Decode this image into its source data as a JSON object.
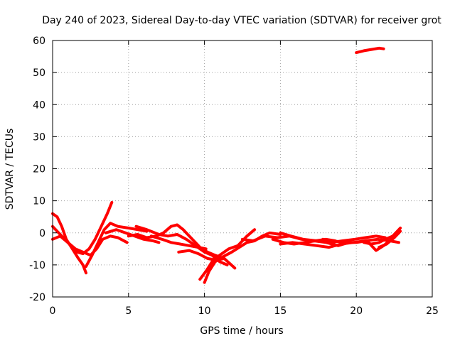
{
  "chart_data": {
    "type": "line",
    "title": "Day 240 of 2023, Sidereal Day-to-day VTEC variation (SDTVAR) for receiver grot",
    "xlabel": "GPS time / hours",
    "ylabel": "SDTVAR / TECUs",
    "xlim": [
      0,
      25
    ],
    "ylim": [
      -20,
      60
    ],
    "xticks": [
      0,
      5,
      10,
      15,
      20,
      25
    ],
    "yticks": [
      -20,
      -10,
      0,
      10,
      20,
      30,
      40,
      50,
      60
    ],
    "xtick_labels": [
      "0",
      "5",
      "10",
      "15",
      "20",
      "25"
    ],
    "ytick_labels": [
      "-20",
      "-10",
      "0",
      "10",
      "20",
      "30",
      "40",
      "50",
      "60"
    ],
    "grid": true,
    "line_color": "#ff0000",
    "series": [
      {
        "name": "s1",
        "points": [
          [
            0.0,
            6
          ],
          [
            0.3,
            5
          ],
          [
            0.6,
            2
          ],
          [
            0.9,
            -2
          ],
          [
            1.3,
            -5
          ],
          [
            1.7,
            -8
          ],
          [
            2.0,
            -10
          ],
          [
            2.2,
            -12.5
          ]
        ]
      },
      {
        "name": "s2",
        "points": [
          [
            0.0,
            2
          ],
          [
            0.4,
            0
          ],
          [
            0.8,
            -2
          ],
          [
            1.2,
            -4
          ],
          [
            1.6,
            -6
          ],
          [
            2.0,
            -6.5
          ],
          [
            2.4,
            -5
          ],
          [
            2.8,
            -2
          ],
          [
            3.2,
            2
          ],
          [
            3.6,
            6
          ],
          [
            3.9,
            9.5
          ]
        ]
      },
      {
        "name": "s3",
        "points": [
          [
            0.0,
            -2
          ],
          [
            0.5,
            -1
          ],
          [
            1.0,
            -3
          ],
          [
            1.5,
            -5
          ],
          [
            2.0,
            -6
          ],
          [
            2.5,
            -7
          ],
          [
            2.9,
            -5
          ],
          [
            3.3,
            -2
          ],
          [
            3.8,
            -1
          ],
          [
            4.3,
            -1.5
          ],
          [
            4.9,
            -3
          ]
        ]
      },
      {
        "name": "s4",
        "points": [
          [
            2.2,
            -10.5
          ],
          [
            2.6,
            -7
          ],
          [
            3.0,
            -3
          ],
          [
            3.4,
            1
          ],
          [
            3.8,
            3
          ],
          [
            4.3,
            2
          ],
          [
            5.0,
            1.5
          ],
          [
            5.6,
            1
          ],
          [
            6.2,
            0.5
          ]
        ]
      },
      {
        "name": "s5",
        "points": [
          [
            3.5,
            0
          ],
          [
            4.2,
            1
          ],
          [
            4.8,
            0
          ],
          [
            5.4,
            -1
          ],
          [
            6.0,
            -2
          ],
          [
            6.6,
            -2.5
          ],
          [
            7.0,
            -3
          ]
        ]
      },
      {
        "name": "s6",
        "points": [
          [
            5.0,
            -1
          ],
          [
            5.6,
            -0.5
          ],
          [
            6.2,
            -1.5
          ],
          [
            6.8,
            -1
          ],
          [
            7.3,
            0
          ],
          [
            7.8,
            2
          ],
          [
            8.2,
            2.5
          ],
          [
            8.6,
            1
          ],
          [
            9.0,
            -1
          ],
          [
            9.4,
            -3
          ],
          [
            9.8,
            -5
          ],
          [
            10.2,
            -6
          ],
          [
            10.7,
            -7
          ],
          [
            11.3,
            -8
          ],
          [
            12.0,
            -11
          ]
        ]
      },
      {
        "name": "s7",
        "points": [
          [
            5.5,
            2
          ],
          [
            6.2,
            1
          ],
          [
            7.0,
            -0.5
          ],
          [
            7.6,
            -1
          ],
          [
            8.2,
            -0.5
          ],
          [
            8.8,
            -2
          ],
          [
            9.4,
            -4
          ],
          [
            10.0,
            -6
          ],
          [
            10.5,
            -7
          ],
          [
            11.0,
            -9
          ],
          [
            11.5,
            -10
          ]
        ]
      },
      {
        "name": "s8",
        "points": [
          [
            6.5,
            -1
          ],
          [
            7.2,
            -2
          ],
          [
            7.8,
            -3
          ],
          [
            8.4,
            -3.5
          ],
          [
            9.0,
            -4
          ],
          [
            9.6,
            -4.5
          ],
          [
            10.1,
            -5
          ]
        ]
      },
      {
        "name": "s9",
        "points": [
          [
            8.3,
            -6
          ],
          [
            9.0,
            -5.5
          ],
          [
            9.6,
            -6.5
          ],
          [
            10.2,
            -8
          ],
          [
            10.8,
            -8.5
          ],
          [
            11.3,
            -8
          ]
        ]
      },
      {
        "name": "s10",
        "points": [
          [
            9.7,
            -14.5
          ],
          [
            10.1,
            -12
          ],
          [
            10.5,
            -9
          ],
          [
            11.0,
            -7
          ],
          [
            11.6,
            -5
          ],
          [
            12.2,
            -4
          ],
          [
            12.8,
            -1
          ],
          [
            13.3,
            1
          ]
        ]
      },
      {
        "name": "s11",
        "points": [
          [
            10.0,
            -15.5
          ],
          [
            10.3,
            -12
          ],
          [
            10.7,
            -9
          ],
          [
            11.2,
            -7.5
          ],
          [
            11.8,
            -6
          ],
          [
            12.3,
            -4.5
          ],
          [
            12.8,
            -3
          ],
          [
            13.3,
            -2.5
          ],
          [
            13.8,
            -1
          ],
          [
            14.3,
            0
          ],
          [
            15.0,
            -0.5
          ]
        ]
      },
      {
        "name": "s12",
        "points": [
          [
            12.5,
            -2
          ],
          [
            13.2,
            -2.5
          ],
          [
            14.0,
            -1
          ],
          [
            14.8,
            -1.5
          ],
          [
            15.6,
            -1
          ],
          [
            16.4,
            -2
          ],
          [
            17.2,
            -2.5
          ],
          [
            18.0,
            -3
          ],
          [
            18.8,
            -4
          ],
          [
            19.5,
            -3
          ]
        ]
      },
      {
        "name": "s13",
        "points": [
          [
            14.5,
            -2
          ],
          [
            15.2,
            -3
          ],
          [
            15.9,
            -3.5
          ],
          [
            16.6,
            -3
          ],
          [
            17.3,
            -2.5
          ],
          [
            18.0,
            -2
          ],
          [
            18.6,
            -2.5
          ]
        ]
      },
      {
        "name": "s14",
        "points": [
          [
            15.0,
            -3.5
          ],
          [
            15.8,
            -3
          ],
          [
            16.6,
            -3.5
          ],
          [
            17.4,
            -4
          ],
          [
            18.2,
            -4.5
          ],
          [
            19.0,
            -3.5
          ],
          [
            19.8,
            -3
          ],
          [
            20.6,
            -2.5
          ],
          [
            21.4,
            -2
          ],
          [
            22.2,
            -2.5
          ],
          [
            22.8,
            -3
          ]
        ]
      },
      {
        "name": "s15",
        "points": [
          [
            15.0,
            0
          ],
          [
            15.7,
            -1
          ],
          [
            16.5,
            -2
          ],
          [
            17.4,
            -2.5
          ],
          [
            18.3,
            -3
          ],
          [
            19.1,
            -2.5
          ],
          [
            19.9,
            -2
          ],
          [
            20.6,
            -1.5
          ],
          [
            21.3,
            -1
          ],
          [
            21.9,
            -1.5
          ]
        ]
      },
      {
        "name": "s16",
        "points": [
          [
            17.8,
            -2
          ],
          [
            18.5,
            -2.5
          ],
          [
            19.2,
            -3
          ],
          [
            20.0,
            -3
          ],
          [
            20.7,
            -2.5
          ],
          [
            21.3,
            -5.5
          ],
          [
            21.8,
            -4
          ],
          [
            22.3,
            -2
          ],
          [
            22.8,
            0
          ]
        ]
      },
      {
        "name": "s17",
        "points": [
          [
            20.5,
            -3
          ],
          [
            21.0,
            -3.5
          ],
          [
            21.5,
            -3
          ],
          [
            21.9,
            -2
          ],
          [
            22.4,
            -1
          ],
          [
            22.9,
            1.5
          ]
        ]
      },
      {
        "name": "s18",
        "points": [
          [
            21.5,
            -4.5
          ],
          [
            22.0,
            -3.5
          ],
          [
            22.5,
            -1.5
          ],
          [
            22.9,
            0.5
          ]
        ]
      },
      {
        "name": "s19",
        "points": [
          [
            20.0,
            56.2
          ],
          [
            20.5,
            56.8
          ],
          [
            21.0,
            57.2
          ],
          [
            21.5,
            57.6
          ],
          [
            21.8,
            57.4
          ]
        ]
      }
    ]
  }
}
